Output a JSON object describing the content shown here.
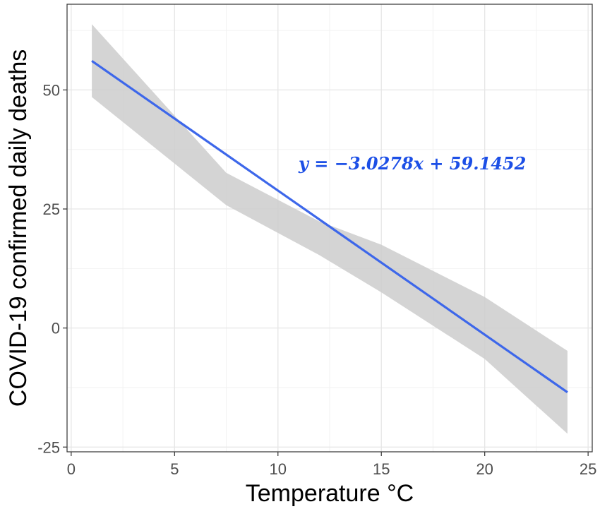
{
  "chart_data": {
    "type": "line",
    "title": "",
    "xlabel": "Temperature °C",
    "ylabel": "COVID-19 confirmed daily deaths",
    "xlim": [
      -0.2,
      25.2
    ],
    "ylim": [
      -26,
      68
    ],
    "x_ticks": [
      0,
      5,
      10,
      15,
      20,
      25
    ],
    "y_ticks": [
      -25,
      0,
      25,
      50
    ],
    "x_tick_labels": [
      "0",
      "5",
      "10",
      "15",
      "20",
      "25"
    ],
    "y_tick_labels": [
      "-25",
      "0",
      "25",
      "50"
    ],
    "grid": true,
    "legend": "none",
    "series": [
      {
        "kind": "regression_line",
        "color": "#3d67ea",
        "x": [
          1,
          24
        ],
        "y": [
          56.1,
          -13.5
        ]
      },
      {
        "kind": "confidence_band",
        "color": "#cccccc",
        "x": [
          1,
          7.5,
          12,
          15,
          20,
          24
        ],
        "upper": [
          63.8,
          32.6,
          22.4,
          17.5,
          6.5,
          -4.8
        ],
        "lower": [
          48.5,
          25.8,
          15.3,
          7.5,
          -6.5,
          -22.2
        ]
      }
    ],
    "annotation": {
      "text": "y = −3.0278x + 59.1452",
      "color": "#1c4fe6",
      "x": 16.5,
      "y": 34.5
    }
  }
}
